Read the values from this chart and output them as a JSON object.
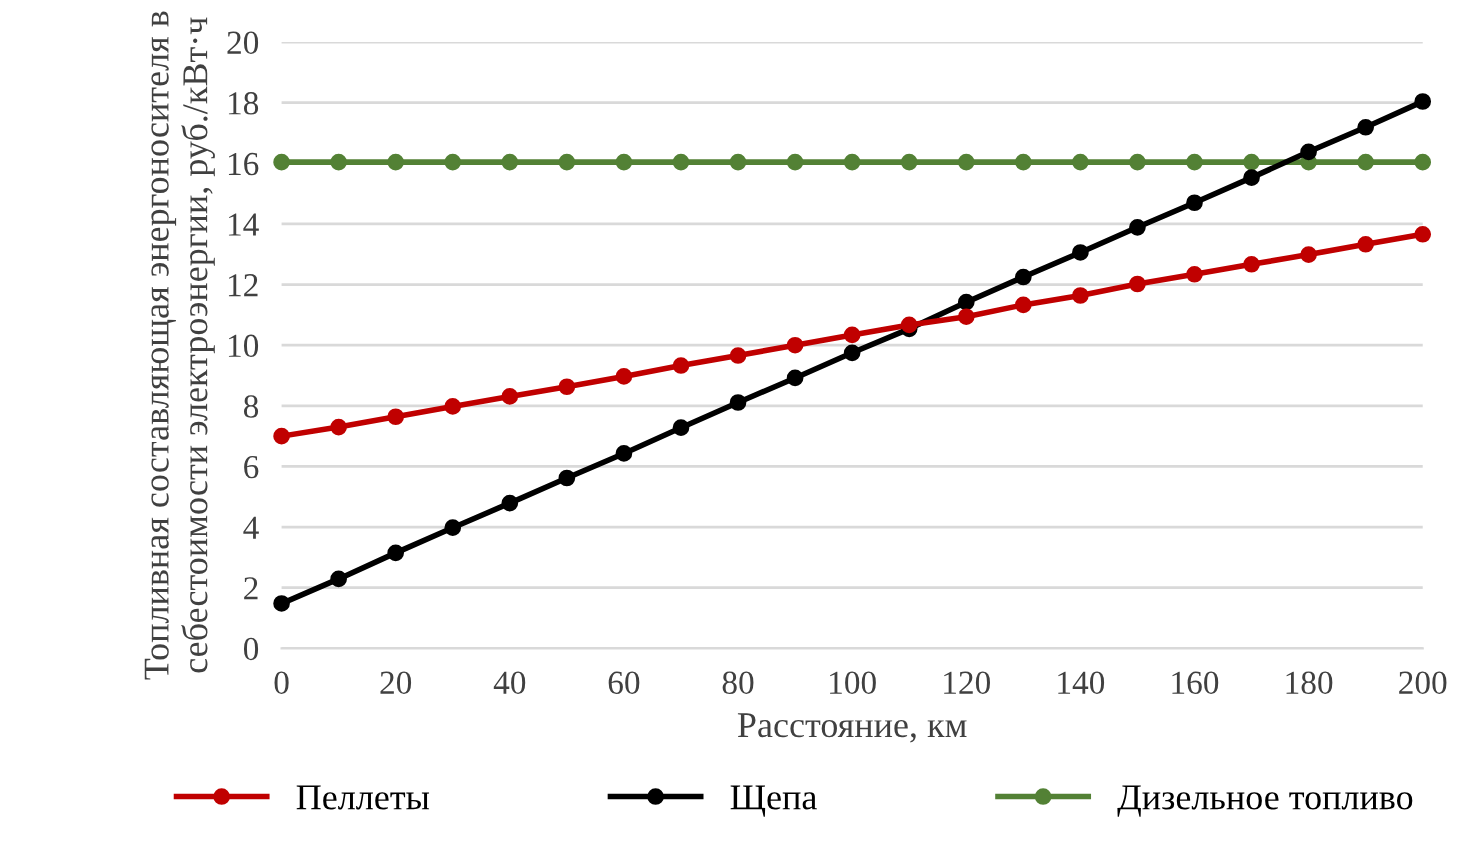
{
  "chart_data": {
    "type": "line",
    "xlabel": "Расстояние, км",
    "ylabel": "Топливная составляющая энергоносителя в себестоимости электроэнергии, руб./кВт·ч",
    "x": [
      0,
      10,
      20,
      30,
      40,
      50,
      60,
      70,
      80,
      90,
      100,
      110,
      120,
      130,
      140,
      150,
      160,
      170,
      180,
      190,
      200
    ],
    "series": [
      {
        "name": "Пеллеты",
        "color": "#c00000",
        "values": [
          7.0,
          7.3,
          7.64,
          7.98,
          8.31,
          8.63,
          8.97,
          9.33,
          9.66,
          10.0,
          10.34,
          10.67,
          10.94,
          11.33,
          11.64,
          12.02,
          12.34,
          12.67,
          12.99,
          13.33,
          13.66
        ]
      },
      {
        "name": "Щепа",
        "color": "#000000",
        "values": [
          1.48,
          2.29,
          3.15,
          3.98,
          4.79,
          5.62,
          6.43,
          7.28,
          8.11,
          8.92,
          9.75,
          10.54,
          11.42,
          12.25,
          13.06,
          13.89,
          14.7,
          15.53,
          16.38,
          17.19,
          18.04
        ]
      },
      {
        "name": "Дизельное топливо",
        "color": "#538135",
        "values": [
          16.04,
          16.04,
          16.04,
          16.04,
          16.04,
          16.04,
          16.04,
          16.04,
          16.04,
          16.04,
          16.04,
          16.04,
          16.04,
          16.04,
          16.04,
          16.04,
          16.04,
          16.04,
          16.04,
          16.04,
          16.04
        ]
      }
    ],
    "xlim": [
      0,
      200
    ],
    "xticks": [
      0,
      20,
      40,
      60,
      80,
      100,
      120,
      140,
      160,
      180,
      200
    ],
    "ylim": [
      0,
      20
    ],
    "yticks": [
      0,
      2,
      4,
      6,
      8,
      10,
      12,
      14,
      16,
      18,
      20
    ],
    "grid": "y",
    "legend": "bottom",
    "marker": "circle",
    "line_style": "solid"
  }
}
